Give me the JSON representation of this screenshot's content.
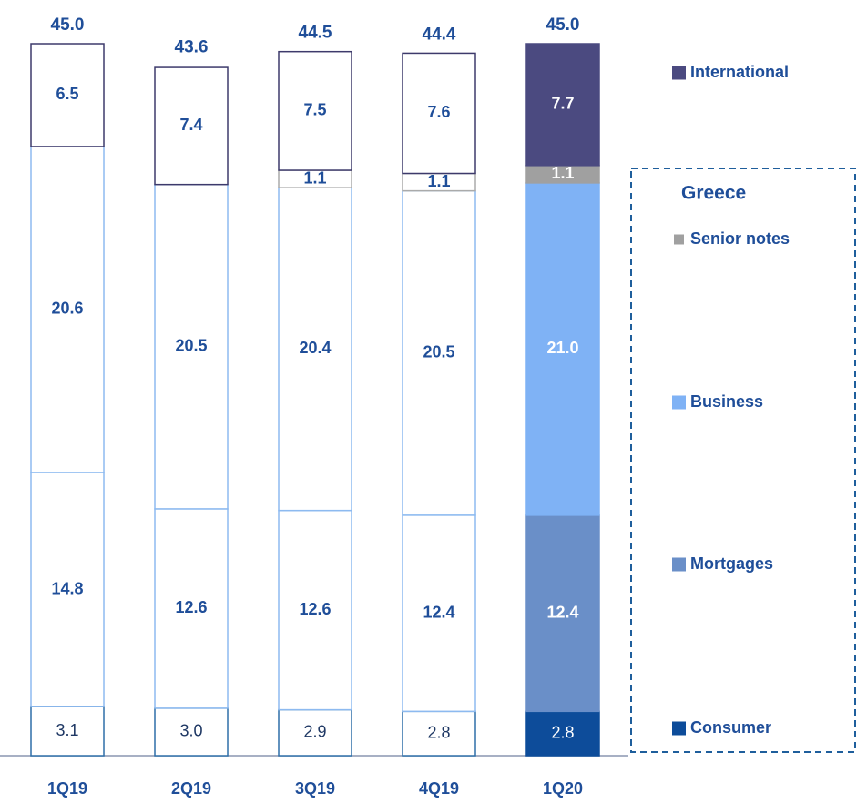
{
  "chart_data": {
    "type": "stacked_bar",
    "categories": [
      "1Q19",
      "2Q19",
      "3Q19",
      "4Q19",
      "1Q20"
    ],
    "filled": [
      false,
      false,
      false,
      false,
      true
    ],
    "series": [
      {
        "name": "Consumer",
        "color": "#0d4c9a",
        "edge_color": "#2f6fa8",
        "label_weight": "normal",
        "values": [
          3.1,
          3.0,
          2.9,
          2.8,
          2.8
        ],
        "value_labels": [
          "3.1",
          "3.0",
          "2.9",
          "2.8",
          "2.8"
        ]
      },
      {
        "name": "Mortgages",
        "color": "#6a8fc8",
        "edge_color": "#8dbaf0",
        "label_weight": "bold",
        "values": [
          14.8,
          12.6,
          12.6,
          12.4,
          12.4
        ],
        "value_labels": [
          "14.8",
          "12.6",
          "12.6",
          "12.4",
          "12.4"
        ]
      },
      {
        "name": "Business",
        "color": "#7fb2f5",
        "edge_color": "#8dbaf0",
        "label_weight": "bold",
        "values": [
          20.6,
          20.5,
          20.4,
          20.5,
          21.0
        ],
        "value_labels": [
          "20.6",
          "20.5",
          "20.4",
          "20.5",
          "21.0"
        ]
      },
      {
        "name": "Senior notes",
        "color": "#a0a0a0",
        "edge_color": "#aaaaaa",
        "label_weight": "bold",
        "values": [
          null,
          null,
          1.1,
          1.1,
          1.1
        ],
        "value_labels": [
          null,
          null,
          "1.1",
          "1.1",
          "1.1"
        ]
      },
      {
        "name": "International",
        "color": "#4b4a80",
        "edge_color": "#3d3a6b",
        "label_weight": "bold",
        "values": [
          6.5,
          7.4,
          7.5,
          7.6,
          7.7
        ],
        "value_labels": [
          "6.5",
          "7.4",
          "7.5",
          "7.6",
          "7.7"
        ]
      }
    ],
    "totals": [
      45.0,
      43.6,
      44.5,
      44.4,
      45.0
    ],
    "total_labels": [
      "45.0",
      "43.6",
      "44.5",
      "44.4",
      "45.0"
    ],
    "legend_group": "Greece",
    "ylim": [
      0,
      45
    ]
  }
}
